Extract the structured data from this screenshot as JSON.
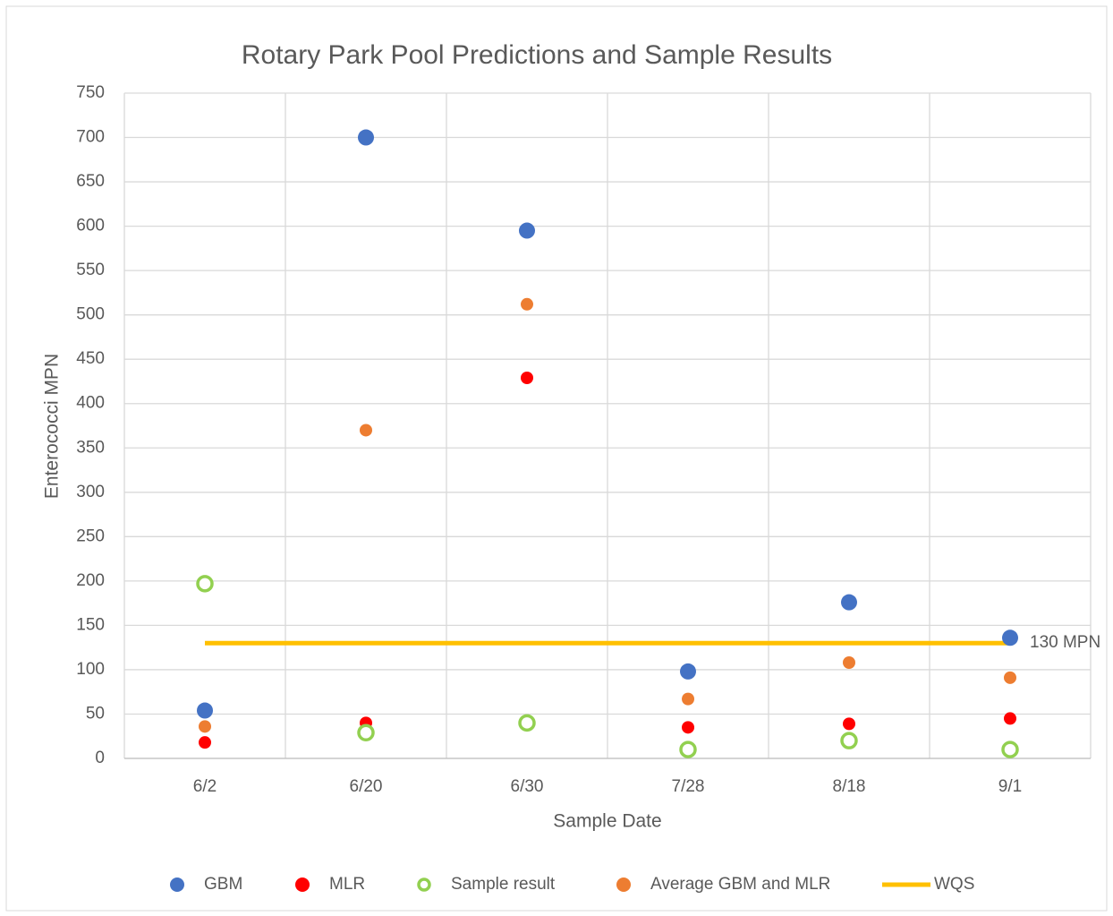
{
  "chart_data": {
    "type": "scatter",
    "title": "Rotary Park Pool Predictions and Sample Results",
    "x_label": "Sample Date",
    "y_label": "Enterococci MPN",
    "categories": [
      "6/2",
      "6/20",
      "6/30",
      "7/28",
      "8/18",
      "9/1"
    ],
    "series": [
      {
        "name": "GBM",
        "color": "#4472c4",
        "marker": "filled",
        "values": [
          54,
          700,
          595,
          98,
          176,
          136
        ]
      },
      {
        "name": "MLR",
        "color": "#ff0000",
        "marker": "filled",
        "values": [
          18,
          40,
          429,
          35,
          39,
          45
        ]
      },
      {
        "name": "Sample result",
        "color": "#92d050",
        "marker": "hollow",
        "values": [
          197,
          29,
          40,
          10,
          20,
          10
        ]
      },
      {
        "name": "Average GBM and MLR",
        "color": "#ed7d31",
        "marker": "filled",
        "values": [
          36,
          370,
          512,
          67,
          108,
          91
        ]
      },
      {
        "name": "WQS",
        "color": "#ffc000",
        "marker": "line",
        "values": [
          130,
          130,
          130,
          130,
          130,
          130
        ]
      }
    ],
    "annotation": "130 MPN",
    "ylim": [
      0,
      750
    ],
    "yticks": [
      0,
      50,
      100,
      150,
      200,
      250,
      300,
      350,
      400,
      450,
      500,
      550,
      600,
      650,
      700,
      750
    ],
    "grid": true,
    "legend": "bottom"
  }
}
